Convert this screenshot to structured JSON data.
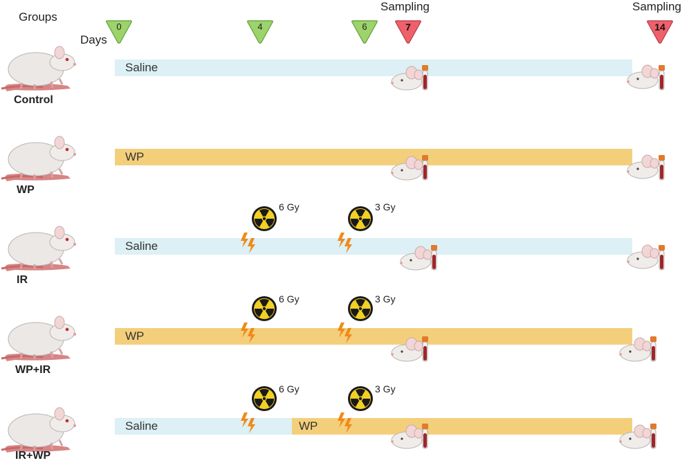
{
  "header": {
    "groups_label": "Groups",
    "days_label": "Days",
    "sampling_label_1": "Sampling",
    "sampling_label_2": "Sampling"
  },
  "markers": [
    {
      "day": "0",
      "kind": "treatment",
      "color": "#9cd36a"
    },
    {
      "day": "4",
      "kind": "treatment",
      "color": "#9cd36a"
    },
    {
      "day": "6",
      "kind": "treatment",
      "color": "#9cd36a"
    },
    {
      "day": "7",
      "kind": "sampling",
      "color": "#f0606b"
    },
    {
      "day": "14",
      "kind": "sampling",
      "color": "#f0606b"
    }
  ],
  "groups": [
    {
      "name": "Control",
      "segments": [
        {
          "label": "Saline",
          "color": "#dcf0f5"
        }
      ]
    },
    {
      "name": "WP",
      "segments": [
        {
          "label": "WP",
          "color": "#f4cf7b"
        }
      ]
    },
    {
      "name": "IR",
      "segments": [
        {
          "label": "Saline",
          "color": "#dcf0f5"
        }
      ],
      "doses": [
        "6 Gy",
        "3 Gy"
      ]
    },
    {
      "name": "WP+IR",
      "segments": [
        {
          "label": "WP",
          "color": "#f4cf7b"
        }
      ],
      "doses": [
        "6 Gy",
        "3 Gy"
      ]
    },
    {
      "name": "IR+WP",
      "segments": [
        {
          "label": "Saline",
          "color": "#dcf0f5"
        },
        {
          "label": "WP",
          "color": "#f4cf7b"
        }
      ],
      "doses": [
        "6 Gy",
        "3 Gy"
      ]
    }
  ],
  "icons": {
    "rat": "rat-icon",
    "radiation": "radiation-icon",
    "lightning": "lightning-icon",
    "mouse_head": "mouse-head-icon",
    "blood_tube": "blood-tube-icon"
  }
}
